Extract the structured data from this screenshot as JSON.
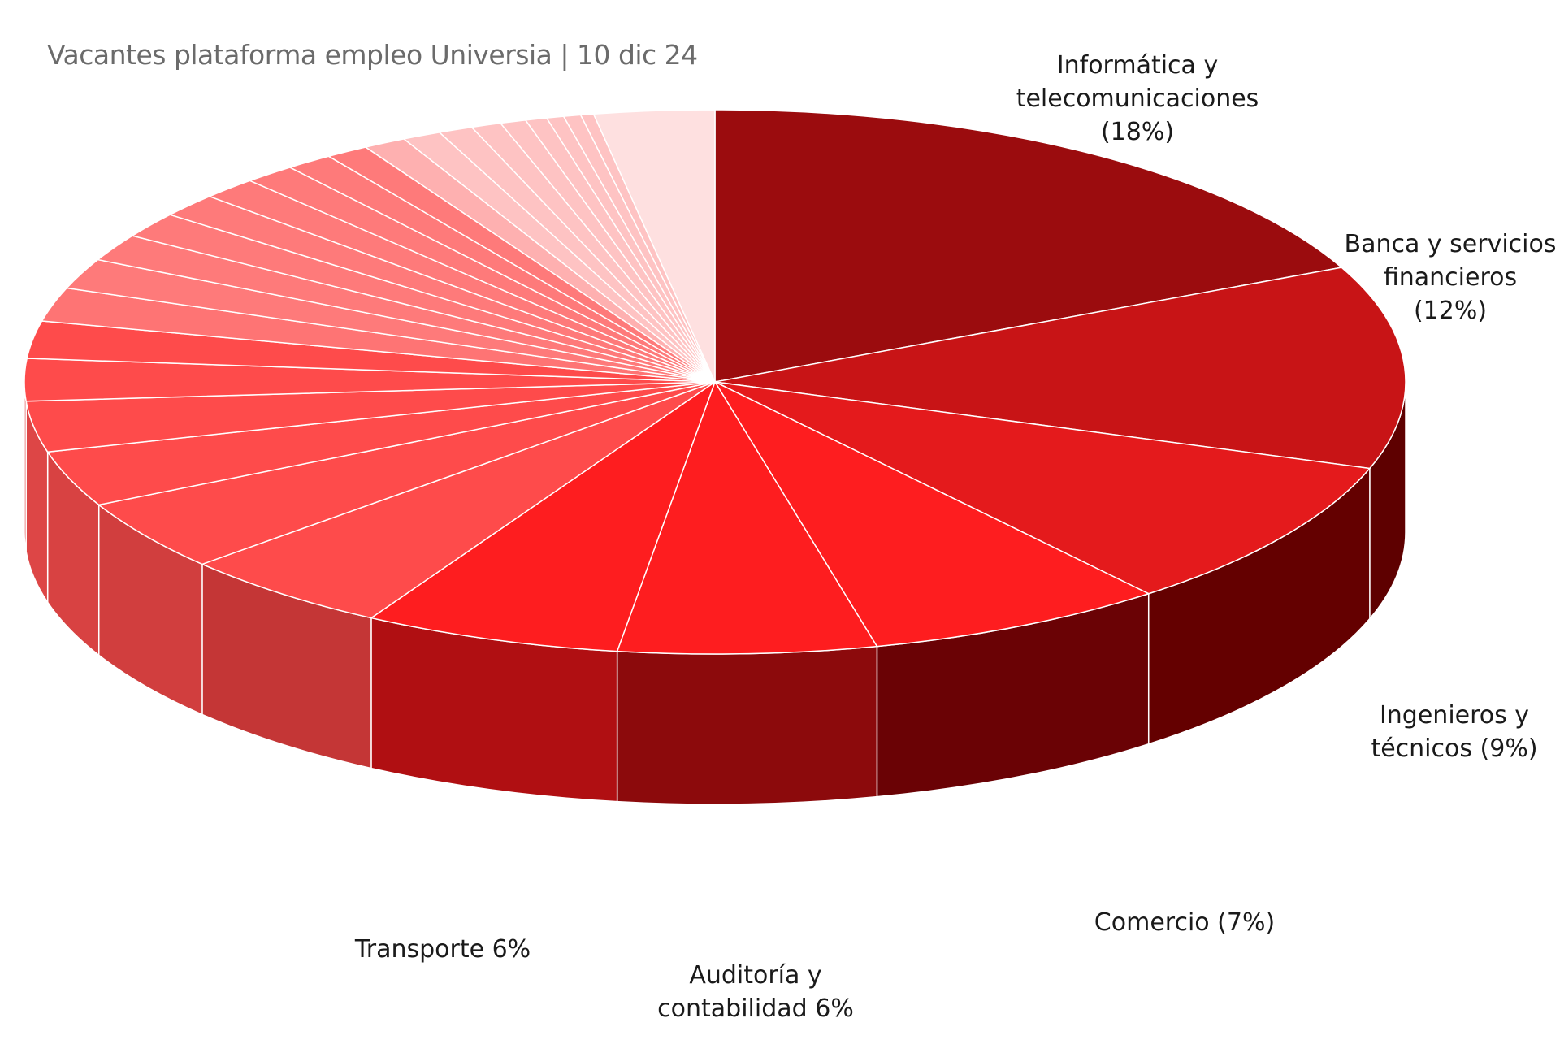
{
  "chart_data": {
    "type": "pie",
    "title": "Vacantes plataforma empleo Universia | 10 dic 24",
    "style": "3d-tilted",
    "slices": [
      {
        "name": "Informática y telecomunicaciones",
        "value": 18,
        "label_lines": [
          "Informática y",
          "telecomunicaciones",
          "(18%)"
        ],
        "color": "#9b0c0e",
        "side_color": "#5c0000"
      },
      {
        "name": "Banca y servicios financieros",
        "value": 12,
        "label_lines": [
          "Banca y servicios",
          "financieros",
          "(12%)"
        ],
        "color": "#c81416",
        "side_color": "#5e0000"
      },
      {
        "name": "Ingenieros y técnicos",
        "value": 9,
        "label_lines": [
          "Ingenieros y",
          "técnicos (9%)"
        ],
        "color": "#e41a1c",
        "side_color": "#640000"
      },
      {
        "name": "Comercio",
        "value": 7,
        "label_lines": [
          "Comercio (7%)"
        ],
        "color": "#fe1d1f",
        "side_color": "#6a0205"
      },
      {
        "name": "Auditoría y contabilidad",
        "value": 6,
        "label_lines": [
          "Auditoría y",
          "contabilidad 6%"
        ],
        "color": "#fe1d1f",
        "side_color": "#8c0a0c"
      },
      {
        "name": "Transporte",
        "value": 6,
        "label_lines": [
          "Transporte 6%"
        ],
        "color": "#fe1d1f",
        "side_color": "#b00f12"
      },
      {
        "name": "",
        "value": 5,
        "label_lines": [],
        "color": "#fe4b4b",
        "side_color": "#c43636"
      },
      {
        "name": "",
        "value": 4.2,
        "label_lines": [],
        "color": "#fe4b4b",
        "side_color": "#d13e3e"
      },
      {
        "name": "",
        "value": 3.3,
        "label_lines": [],
        "color": "#fe4b4b",
        "side_color": "#d84242"
      },
      {
        "name": "",
        "value": 3,
        "label_lines": [],
        "color": "#fe4b4b",
        "side_color": "#dd4646"
      },
      {
        "name": "",
        "value": 2.5,
        "label_lines": [],
        "color": "#fe4b4b",
        "side_color": "#e04848"
      },
      {
        "name": "",
        "value": 2.2,
        "label_lines": [],
        "color": "#fe4b4b",
        "side_color": "#e04848"
      },
      {
        "name": "",
        "value": 2,
        "label_lines": [],
        "color": "#fe7474",
        "side_color": "#e05a5a"
      },
      {
        "name": "",
        "value": 1.8,
        "label_lines": [],
        "color": "#fe7a7a",
        "side_color": "#e06060"
      },
      {
        "name": "",
        "value": 1.6,
        "label_lines": [],
        "color": "#fe7a7a",
        "side_color": "#e06060"
      },
      {
        "name": "",
        "value": 1.5,
        "label_lines": [],
        "color": "#fe7a7a",
        "side_color": "#e06060"
      },
      {
        "name": "",
        "value": 1.4,
        "label_lines": [],
        "color": "#fe7a7a",
        "side_color": "#e06060"
      },
      {
        "name": "",
        "value": 1.3,
        "label_lines": [],
        "color": "#fe7a7a",
        "side_color": "#e06060"
      },
      {
        "name": "",
        "value": 1.2,
        "label_lines": [],
        "color": "#fe7a7a",
        "side_color": "#e06060"
      },
      {
        "name": "",
        "value": 1.1,
        "label_lines": [],
        "color": "#fe7a7a",
        "side_color": "#e06060"
      },
      {
        "name": "",
        "value": 1.0,
        "label_lines": [],
        "color": "#fe7a7a",
        "side_color": "#e06060"
      },
      {
        "name": "",
        "value": 1.0,
        "label_lines": [],
        "color": "#feb0b0",
        "side_color": "#e08080"
      },
      {
        "name": "",
        "value": 0.9,
        "label_lines": [],
        "color": "#fec3c3",
        "side_color": "#e0a0a0"
      },
      {
        "name": "",
        "value": 0.8,
        "label_lines": [],
        "color": "#fec3c3",
        "side_color": "#e0a0a0"
      },
      {
        "name": "",
        "value": 0.7,
        "label_lines": [],
        "color": "#fec3c3",
        "side_color": "#e0a0a0"
      },
      {
        "name": "",
        "value": 0.6,
        "label_lines": [],
        "color": "#fec3c3",
        "side_color": "#e0a0a0"
      },
      {
        "name": "",
        "value": 0.5,
        "label_lines": [],
        "color": "#fec3c3",
        "side_color": "#e0a0a0"
      },
      {
        "name": "",
        "value": 0.4,
        "label_lines": [],
        "color": "#fec3c3",
        "side_color": "#e0a0a0"
      },
      {
        "name": "",
        "value": 0.4,
        "label_lines": [],
        "color": "#fec3c3",
        "side_color": "#e0a0a0"
      },
      {
        "name": "",
        "value": 0.3,
        "label_lines": [],
        "color": "#fec3c3",
        "side_color": "#e0a0a0"
      },
      {
        "name": "",
        "value": 2.8,
        "label_lines": [],
        "color": "#fee0e0",
        "side_color": "#e0c0c0"
      }
    ]
  }
}
